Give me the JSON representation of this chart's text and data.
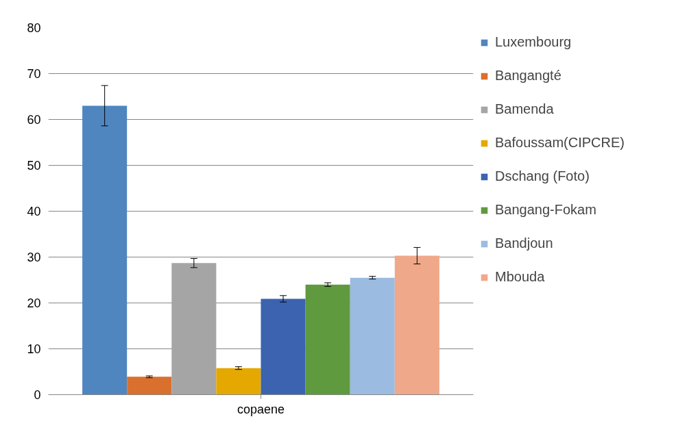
{
  "chart_data": {
    "type": "bar",
    "categories": [
      "copaene"
    ],
    "ylim": [
      0,
      80
    ],
    "yticks": [
      0,
      10,
      20,
      30,
      40,
      50,
      60,
      70,
      80
    ],
    "grid": "y",
    "legend": "right",
    "series": [
      {
        "name": "Luxembourg",
        "color": "#4f86bf",
        "values": [
          63.0
        ],
        "errors": [
          4.4
        ]
      },
      {
        "name": "Bangangté",
        "color": "#d9702e",
        "values": [
          3.9
        ],
        "errors": [
          0.2
        ]
      },
      {
        "name": "Bamenda",
        "color": "#a5a5a5",
        "values": [
          28.7
        ],
        "errors": [
          1.0
        ]
      },
      {
        "name": "Bafoussam(CIPCRE)",
        "color": "#e5a800",
        "values": [
          5.8
        ],
        "errors": [
          0.3
        ]
      },
      {
        "name": "Dschang (Foto)",
        "color": "#3b63b0",
        "values": [
          20.9
        ],
        "errors": [
          0.7
        ]
      },
      {
        "name": "Bangang-Fokam",
        "color": "#5f9a3e",
        "values": [
          24.0
        ],
        "errors": [
          0.4
        ]
      },
      {
        "name": "Bandjoun",
        "color": "#9cbbe1",
        "values": [
          25.5
        ],
        "errors": [
          0.3
        ]
      },
      {
        "name": "Mbouda",
        "color": "#f0a88a",
        "values": [
          30.3
        ],
        "errors": [
          1.8
        ]
      }
    ]
  }
}
